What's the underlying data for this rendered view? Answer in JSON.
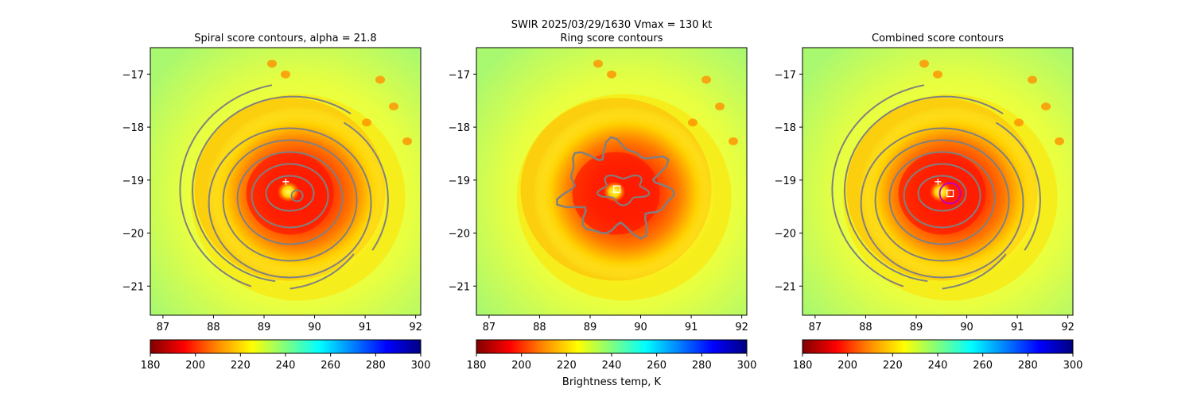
{
  "chart_data": {
    "type": "heatmap",
    "suptitle": "SWIR  2025/03/29/1630    Vmax = 130 kt",
    "panels": [
      {
        "title": "Spiral score contours, alpha = 21.8",
        "contours": "spiral",
        "center_marker": "circle",
        "cross": [
          89.43,
          -19.03
        ],
        "square": null,
        "magenta_circle": null
      },
      {
        "title": "Ring score contours",
        "contours": "ring",
        "center_marker": "square",
        "cross": null,
        "square": [
          89.53,
          -19.17
        ],
        "magenta_circle": null
      },
      {
        "title": "Combined score contours",
        "contours": "combined",
        "center_marker": "square",
        "cross": [
          89.43,
          -19.03
        ],
        "square": [
          89.67,
          -19.25
        ],
        "magenta_circle": [
          89.67,
          -19.25
        ]
      }
    ],
    "x_ticks": [
      87,
      88,
      89,
      90,
      91,
      92
    ],
    "y_ticks": [
      -17,
      -18,
      -19,
      -20,
      -21
    ],
    "x_tick_labels": [
      "87",
      "88",
      "89",
      "90",
      "91",
      "92"
    ],
    "y_tick_labels": [
      "−17",
      "−18",
      "−19",
      "−20",
      "−21"
    ],
    "xlim": [
      86.75,
      92.1
    ],
    "ylim": [
      -21.55,
      -16.5
    ],
    "eye_center": [
      89.67,
      -19.25
    ],
    "colorbar": {
      "label": "Brightness temp, K",
      "range": [
        180,
        300
      ],
      "ticks": [
        180,
        200,
        220,
        240,
        260,
        280,
        300
      ],
      "tick_labels": [
        "180",
        "200",
        "220",
        "240",
        "260",
        "280",
        "300"
      ],
      "colors": [
        "#800000",
        "#ff0000",
        "#ff8c00",
        "#ffff00",
        "#7fff7f",
        "#00ffff",
        "#0080ff",
        "#0000ff",
        "#000080"
      ]
    },
    "contour_color": "#808080",
    "marker_color": "#ffffff",
    "magenta": "#c000c0"
  }
}
